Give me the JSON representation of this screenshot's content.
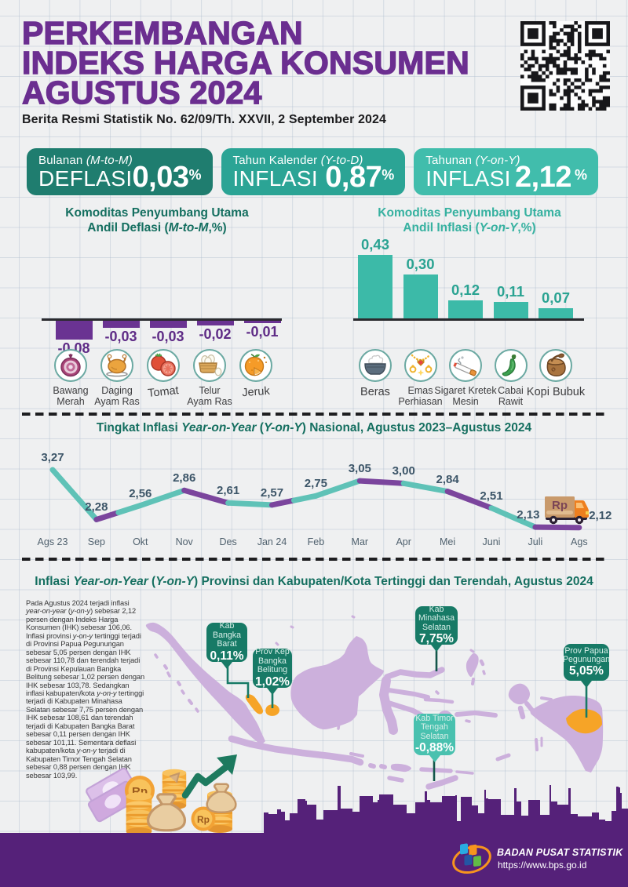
{
  "header": {
    "title_lines": [
      "PERKEMBANGAN",
      "INDEKS HARGA KONSUMEN",
      "AGUSTUS 2024"
    ],
    "subtitle": "Berita Resmi Statistik No. 62/09/Th. XXVII, 2 September 2024"
  },
  "summary_cards": [
    {
      "period": "Bulanan",
      "period_note": "(M-to-M)",
      "kind": "DEFLASI",
      "value": "0,03",
      "unit": "%",
      "bg": "#1f7d6f"
    },
    {
      "period": "Tahun Kalender",
      "period_note": "(Y-to-D)",
      "kind": "INFLASI",
      "value": "0,87",
      "unit": "%",
      "bg": "#2ba495"
    },
    {
      "period": "Tahunan",
      "period_note": "(Y-on-Y)",
      "kind": "INFLASI",
      "value": "2,12",
      "unit": "%",
      "bg": "#41bdac"
    }
  ],
  "chart_data": [
    {
      "id": "deflasi_mtm",
      "type": "bar",
      "title": "Komoditas Penyumbang Utama",
      "subtitle_runs": [
        [
          "Andil Deflasi (",
          0
        ],
        [
          "M-to-M",
          1
        ],
        [
          ",%)",
          0
        ]
      ],
      "categories": [
        "Bawang\nMerah",
        "Daging\nAyam Ras",
        "Tomat",
        "Telur\nAyam Ras",
        "Jeruk"
      ],
      "values": [
        -0.08,
        -0.03,
        -0.03,
        -0.02,
        -0.01
      ],
      "title_color": "#156f60",
      "bar_color": "#6a3392",
      "value_color": "#5e2b86",
      "ylim": [
        -0.1,
        0
      ],
      "grid": false
    },
    {
      "id": "inflasi_yoy",
      "type": "bar",
      "title": "Komoditas Penyumbang Utama",
      "subtitle_runs": [
        [
          "Andil Inflasi (",
          0
        ],
        [
          "Y-on-Y",
          1
        ],
        [
          ",%)",
          0
        ]
      ],
      "categories": [
        "Beras",
        "Emas\nPerhiasan",
        "Sigaret Kretek\nMesin",
        "Cabai\nRawit",
        "Kopi Bubuk"
      ],
      "values": [
        0.43,
        0.3,
        0.12,
        0.11,
        0.07
      ],
      "title_color": "#36b1a0",
      "bar_color": "#3cbaa8",
      "value_color": "#2aa392",
      "ylim": [
        0,
        0.5
      ],
      "grid": false
    },
    {
      "id": "yoy_line",
      "type": "line",
      "title_runs": [
        [
          "Tingkat Inflasi ",
          0
        ],
        [
          "Year-on-Year",
          1
        ],
        [
          " (",
          0
        ],
        [
          "Y-on-Y",
          1
        ],
        [
          ") Nasional, Agustus 2023–Agustus 2024",
          0
        ]
      ],
      "title": "Tingkat Inflasi Year-on-Year (Y-on-Y) Nasional, Agustus 2023-Agustus 2024",
      "x": [
        "Ags 23",
        "Sep",
        "Okt",
        "Nov",
        "Des",
        "Jan 24",
        "Feb",
        "Mar",
        "Apr",
        "Mei",
        "Juni",
        "Juli",
        "Ags"
      ],
      "values": [
        3.27,
        2.28,
        2.56,
        2.86,
        2.61,
        2.57,
        2.75,
        3.05,
        3.0,
        2.84,
        2.51,
        2.13,
        2.12
      ],
      "colors": {
        "teal": "#5fc2b7",
        "purple": "#7b459d"
      },
      "segment_pattern": [
        "t",
        "pt",
        "t",
        "p",
        "t",
        "pt",
        "t",
        "p",
        "t",
        "p",
        "t",
        "p"
      ],
      "ylim": [
        2.0,
        3.4
      ],
      "grid": false,
      "legend": false
    }
  ],
  "truck": {
    "label": "Rp"
  },
  "map_section": {
    "title_runs": [
      [
        "Inflasi ",
        0
      ],
      [
        "Year-on-Year",
        1
      ],
      [
        " (",
        0
      ],
      [
        "Y-on-Y",
        1
      ],
      [
        ") Provinsi dan Kabupaten/Kota Tertinggi dan Terendah, Agustus 2024",
        0
      ]
    ],
    "narrative": "Pada Agustus 2024 terjadi inflasi year-on-year (y-on-y) sebesar 2,12 persen dengan Indeks Harga Konsumen (IHK) sebesar 106,06. Inflasi provinsi y-on-y tertinggi terjadi di Provinsi Papua Pegunungan sebesar 5,05 persen dengan IHK sebesar 110,78 dan terendah terjadi di Provinsi Kepulauan Bangka Belitung sebesar 1,02 persen dengan IHK sebesar 103,78. Sedangkan inflasi kabupaten/kota y-on-y tertinggi terjadi di Kabupaten Minahasa Selatan sebesar 7,75 persen dengan IHK sebesar 108,61 dan terendah terjadi di Kabupaten Bangka Barat sebesar 0,11 persen dengan IHK sebesar 101,11. Sementara deflasi kabupaten/kota y-on-y terjadi di Kabupaten Timor Tengah Selatan sebesar 0,88 persen dengan IHK sebesar 103,99.",
    "callouts": [
      {
        "name": "Kab\nBangka\nBarat",
        "value": "0,11%",
        "variant": "dark"
      },
      {
        "name": "Prov Kep\nBangka\nBelitung",
        "value": "1,02%",
        "variant": "dark"
      },
      {
        "name": "Kab\nMinahasa\nSelatan",
        "value": "7,75%",
        "variant": "dark"
      },
      {
        "name": "Kab Timor\nTengah\nSelatan",
        "value": "-0,88%",
        "variant": "light"
      },
      {
        "name": "Prov Papua\nPegunungan",
        "value": "5,05%",
        "variant": "dark"
      }
    ],
    "colors": {
      "land": "#ccb0dc",
      "highlight": "#f6a427",
      "callout_dark": "#177a66",
      "callout_light": "#49c1af"
    }
  },
  "footer": {
    "org": "BADAN PUSAT STATISTIK",
    "url_text": "https://www.bps.go.id",
    "bg": "#552179"
  },
  "colors": {
    "background": "#eff0f1",
    "title_purple": "#6b2e90",
    "section_teal": "#156f60",
    "skyline_purple": "#552179",
    "axis": "#2a2a2e"
  }
}
